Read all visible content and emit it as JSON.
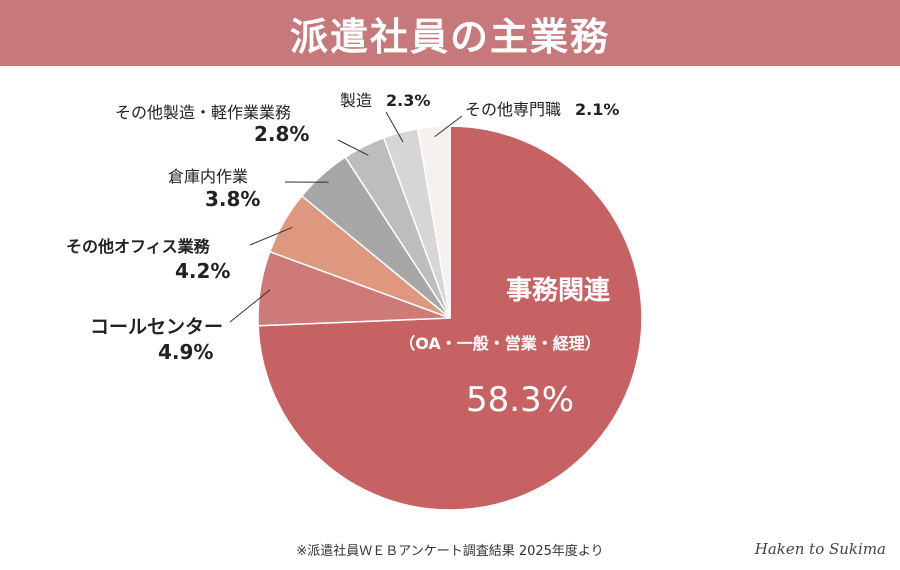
{
  "header": {
    "title": "派遣社員の主業務"
  },
  "chart_data": {
    "type": "pie",
    "title": "派遣社員の主業務",
    "start_angle_deg": 0,
    "direction": "clockwise",
    "slices": [
      {
        "name": "事務関連",
        "subtitle": "（OA・一般・営業・経理）",
        "value": 58.3,
        "value_label": "58.3%",
        "color": "#c66263"
      },
      {
        "name": "コールセンター",
        "value": 4.9,
        "value_label": "4.9%",
        "color": "#cd7a79"
      },
      {
        "name": "その他オフィス業務",
        "value": 4.2,
        "value_label": "4.2%",
        "color": "#de987f"
      },
      {
        "name": "倉庫内作業",
        "value": 3.8,
        "value_label": "3.8%",
        "color": "#a7a7a7"
      },
      {
        "name": "その他製造・軽作業業務",
        "value": 2.8,
        "value_label": "2.8%",
        "color": "#bdbdbd"
      },
      {
        "name": "製造",
        "value": 2.3,
        "value_label": "2.3%",
        "color": "#d6d6d6"
      },
      {
        "name": "その他専門職",
        "value": 2.1,
        "value_label": "2.1%",
        "color": "#f6f1ef"
      }
    ]
  },
  "footnote": "※派遣社員ＷＥＢアンケート調査結果 2025年度より",
  "signature": "Haken to Sukima"
}
